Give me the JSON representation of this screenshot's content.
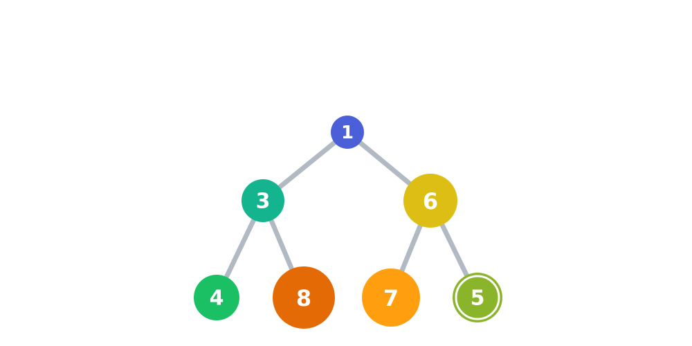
{
  "diagram": {
    "type": "binary-tree",
    "edge_color": "#b1bac2",
    "nodes": [
      {
        "id": "n1",
        "label": "1",
        "color": "#4a5fd8",
        "highlighted": false
      },
      {
        "id": "n3",
        "label": "3",
        "color": "#13b48e",
        "highlighted": false
      },
      {
        "id": "n6",
        "label": "6",
        "color": "#dcbe14",
        "highlighted": false
      },
      {
        "id": "n4",
        "label": "4",
        "color": "#1cc064",
        "highlighted": false
      },
      {
        "id": "n8",
        "label": "8",
        "color": "#e46a06",
        "highlighted": false
      },
      {
        "id": "n7",
        "label": "7",
        "color": "#ff9f10",
        "highlighted": false
      },
      {
        "id": "n5",
        "label": "5",
        "color": "#8ab42a",
        "highlighted": true
      }
    ],
    "edges": [
      {
        "from": "n1",
        "to": "n3"
      },
      {
        "from": "n1",
        "to": "n6"
      },
      {
        "from": "n3",
        "to": "n4"
      },
      {
        "from": "n3",
        "to": "n8"
      },
      {
        "from": "n6",
        "to": "n7"
      },
      {
        "from": "n6",
        "to": "n5"
      }
    ]
  }
}
